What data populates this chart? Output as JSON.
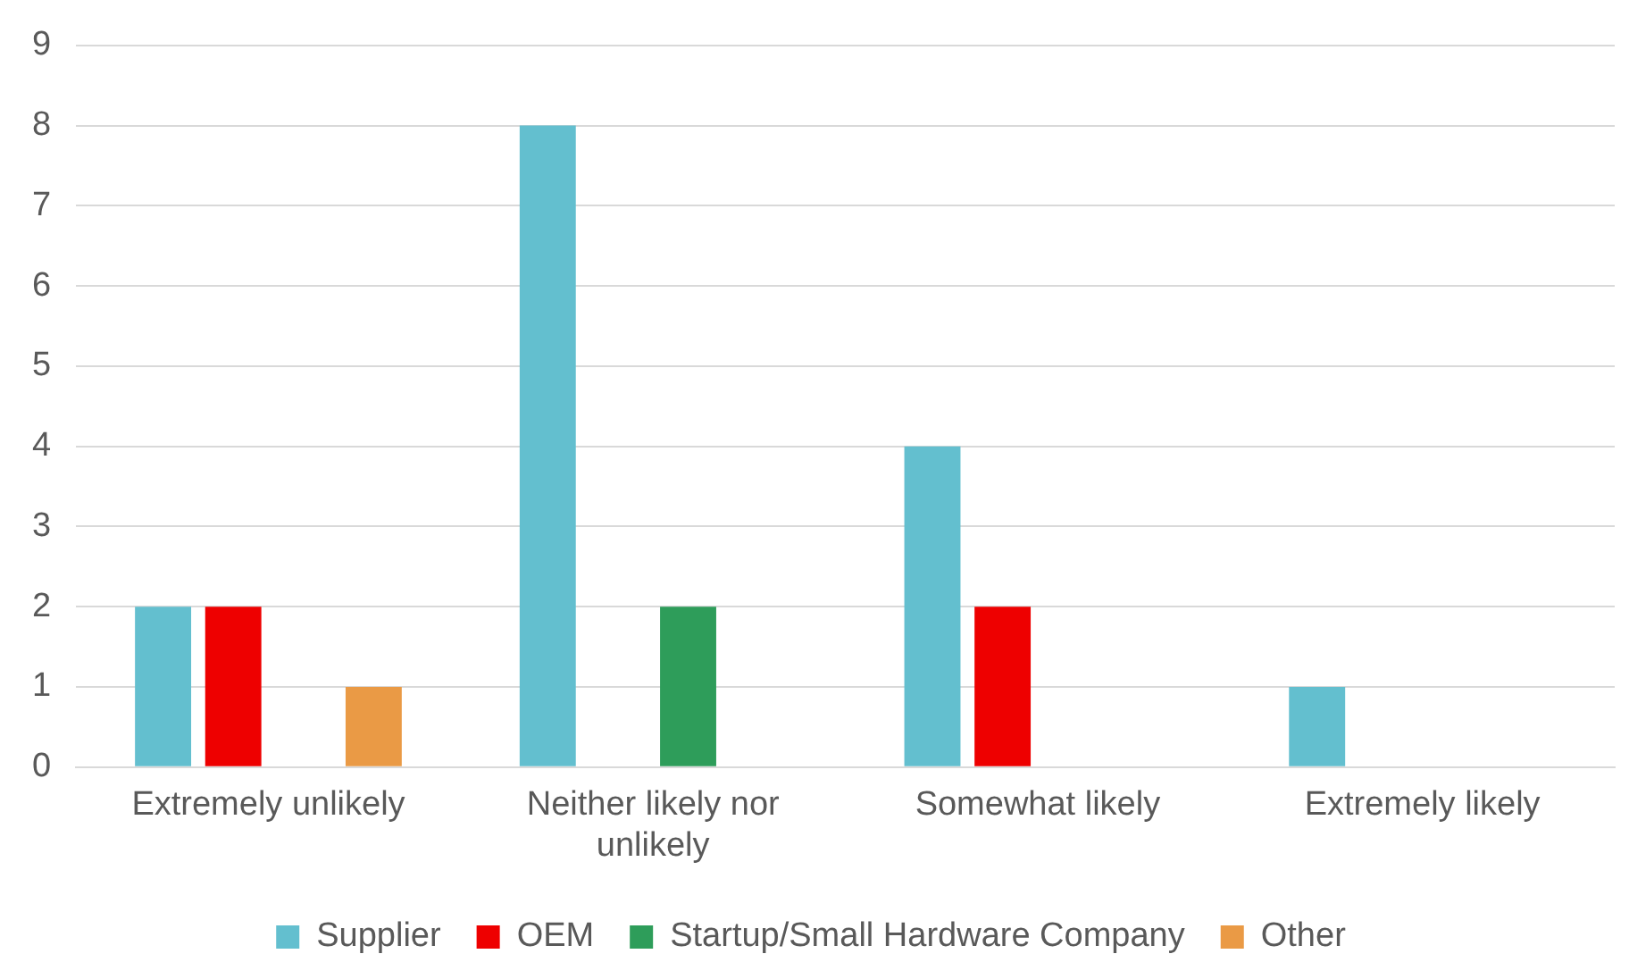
{
  "chart_data": {
    "type": "bar",
    "categories": [
      "Extremely unlikely",
      "Neither likely nor unlikely",
      "Somewhat likely",
      "Extremely likely"
    ],
    "series": [
      {
        "name": "Supplier",
        "color": "#63bfcf",
        "values": [
          2,
          8,
          4,
          1
        ]
      },
      {
        "name": "OEM",
        "color": "#ee0000",
        "values": [
          2,
          0,
          2,
          0
        ]
      },
      {
        "name": "Startup/Small Hardware Company",
        "color": "#2e9d5a",
        "values": [
          0,
          2,
          0,
          0
        ]
      },
      {
        "name": "Other",
        "color": "#ea9a45",
        "values": [
          1,
          0,
          0,
          0
        ]
      }
    ],
    "ylim": [
      0,
      9
    ],
    "yticks": [
      0,
      1,
      2,
      3,
      4,
      5,
      6,
      7,
      8,
      9
    ],
    "grid": "y",
    "legend": "bottom"
  }
}
